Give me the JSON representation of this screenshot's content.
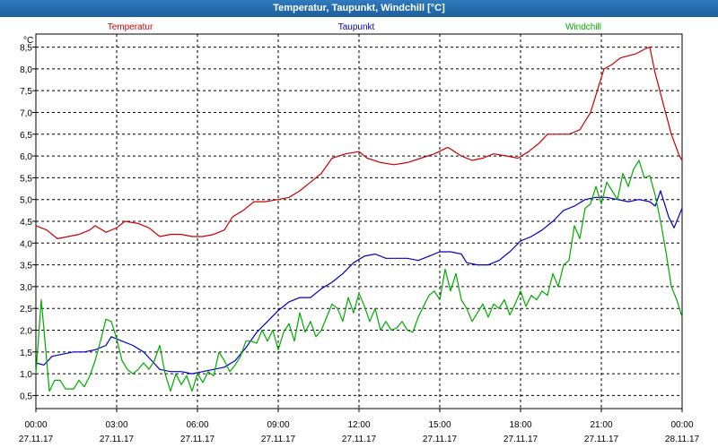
{
  "window": {
    "title": "Temperatur, Taupunkt, Windchill [°C]"
  },
  "chart_data": {
    "type": "line",
    "title": "Temperatur, Taupunkt, Windchill [°C]",
    "ylabel": "°C",
    "ylim": [
      0.2,
      8.8
    ],
    "yticks": [
      "8,5",
      "8,0",
      "7,5",
      "7,0",
      "6,5",
      "6,0",
      "5,5",
      "5,0",
      "4,5",
      "4,0",
      "3,5",
      "3,0",
      "2,5",
      "2,0",
      "1,5",
      "1,0",
      "0,5"
    ],
    "ytick_values": [
      8.5,
      8.0,
      7.5,
      7.0,
      6.5,
      6.0,
      5.5,
      5.0,
      4.5,
      4.0,
      3.5,
      3.0,
      2.5,
      2.0,
      1.5,
      1.0,
      0.5
    ],
    "xlim": [
      0,
      24
    ],
    "xticks": [
      {
        "x": 0,
        "time": "00:00",
        "date": "27.11.17"
      },
      {
        "x": 3,
        "time": "03:00",
        "date": "27.11.17"
      },
      {
        "x": 6,
        "time": "06:00",
        "date": "27.11.17"
      },
      {
        "x": 9,
        "time": "09:00",
        "date": "27.11.17"
      },
      {
        "x": 12,
        "time": "12:00",
        "date": "27.11.17"
      },
      {
        "x": 15,
        "time": "15:00",
        "date": "27.11.17"
      },
      {
        "x": 18,
        "time": "18:00",
        "date": "27.11.17"
      },
      {
        "x": 21,
        "time": "21:00",
        "date": "27.11.17"
      },
      {
        "x": 24,
        "time": "00:00",
        "date": "28.11.17"
      }
    ],
    "grid": true,
    "legend_position": "top",
    "series": [
      {
        "name": "Temperatur",
        "color": "#cc0000",
        "points": [
          [
            0,
            4.4
          ],
          [
            0.4,
            4.3
          ],
          [
            0.8,
            4.1
          ],
          [
            1.2,
            4.15
          ],
          [
            1.6,
            4.2
          ],
          [
            2.0,
            4.3
          ],
          [
            2.2,
            4.4
          ],
          [
            2.6,
            4.25
          ],
          [
            3.0,
            4.35
          ],
          [
            3.3,
            4.5
          ],
          [
            3.8,
            4.45
          ],
          [
            4.2,
            4.35
          ],
          [
            4.6,
            4.15
          ],
          [
            5.0,
            4.2
          ],
          [
            5.4,
            4.2
          ],
          [
            5.8,
            4.15
          ],
          [
            6.2,
            4.15
          ],
          [
            6.6,
            4.2
          ],
          [
            7.0,
            4.3
          ],
          [
            7.3,
            4.6
          ],
          [
            7.7,
            4.75
          ],
          [
            8.1,
            4.95
          ],
          [
            8.5,
            4.95
          ],
          [
            9.0,
            5.0
          ],
          [
            9.4,
            5.05
          ],
          [
            9.8,
            5.2
          ],
          [
            10.2,
            5.4
          ],
          [
            10.6,
            5.6
          ],
          [
            11.0,
            5.95
          ],
          [
            11.5,
            6.05
          ],
          [
            12.0,
            6.1
          ],
          [
            12.3,
            5.95
          ],
          [
            12.8,
            5.85
          ],
          [
            13.3,
            5.8
          ],
          [
            13.8,
            5.85
          ],
          [
            14.3,
            5.95
          ],
          [
            14.8,
            6.05
          ],
          [
            15.3,
            6.2
          ],
          [
            15.8,
            6.0
          ],
          [
            16.2,
            5.9
          ],
          [
            16.6,
            5.95
          ],
          [
            17.0,
            6.05
          ],
          [
            17.5,
            6.0
          ],
          [
            17.9,
            5.95
          ],
          [
            18.3,
            6.1
          ],
          [
            18.7,
            6.3
          ],
          [
            19.0,
            6.5
          ],
          [
            19.4,
            6.5
          ],
          [
            19.8,
            6.5
          ],
          [
            20.2,
            6.6
          ],
          [
            20.6,
            7.0
          ],
          [
            20.9,
            7.6
          ],
          [
            21.1,
            8.0
          ],
          [
            21.4,
            8.1
          ],
          [
            21.7,
            8.25
          ],
          [
            22.0,
            8.3
          ],
          [
            22.3,
            8.35
          ],
          [
            22.6,
            8.45
          ],
          [
            22.8,
            8.5
          ],
          [
            23.0,
            7.9
          ],
          [
            23.3,
            7.2
          ],
          [
            23.6,
            6.5
          ],
          [
            23.9,
            6.0
          ],
          [
            24.0,
            5.9
          ]
        ]
      },
      {
        "name": "Taupunkt",
        "color": "#0000cc",
        "points": [
          [
            0,
            1.25
          ],
          [
            0.3,
            1.2
          ],
          [
            0.6,
            1.4
          ],
          [
            1.0,
            1.45
          ],
          [
            1.4,
            1.5
          ],
          [
            1.8,
            1.5
          ],
          [
            2.2,
            1.55
          ],
          [
            2.6,
            1.65
          ],
          [
            2.8,
            1.85
          ],
          [
            3.2,
            1.75
          ],
          [
            3.6,
            1.65
          ],
          [
            4.0,
            1.5
          ],
          [
            4.3,
            1.3
          ],
          [
            4.6,
            1.1
          ],
          [
            5.0,
            1.05
          ],
          [
            5.4,
            1.05
          ],
          [
            5.8,
            1.0
          ],
          [
            6.2,
            1.05
          ],
          [
            6.6,
            1.1
          ],
          [
            7.0,
            1.15
          ],
          [
            7.4,
            1.3
          ],
          [
            7.8,
            1.6
          ],
          [
            8.2,
            1.95
          ],
          [
            8.6,
            2.2
          ],
          [
            9.0,
            2.45
          ],
          [
            9.4,
            2.65
          ],
          [
            9.8,
            2.75
          ],
          [
            10.2,
            2.75
          ],
          [
            10.6,
            2.95
          ],
          [
            11.0,
            3.1
          ],
          [
            11.4,
            3.3
          ],
          [
            11.8,
            3.55
          ],
          [
            12.2,
            3.7
          ],
          [
            12.6,
            3.75
          ],
          [
            13.0,
            3.65
          ],
          [
            13.4,
            3.65
          ],
          [
            13.8,
            3.65
          ],
          [
            14.2,
            3.6
          ],
          [
            14.6,
            3.7
          ],
          [
            15.0,
            3.8
          ],
          [
            15.4,
            3.8
          ],
          [
            15.8,
            3.75
          ],
          [
            16.0,
            3.55
          ],
          [
            16.4,
            3.5
          ],
          [
            16.8,
            3.5
          ],
          [
            17.2,
            3.6
          ],
          [
            17.6,
            3.8
          ],
          [
            18.0,
            4.05
          ],
          [
            18.4,
            4.15
          ],
          [
            18.8,
            4.3
          ],
          [
            19.2,
            4.5
          ],
          [
            19.6,
            4.75
          ],
          [
            20.0,
            4.85
          ],
          [
            20.4,
            5.0
          ],
          [
            20.8,
            5.05
          ],
          [
            21.2,
            5.05
          ],
          [
            21.6,
            5.0
          ],
          [
            22.0,
            4.95
          ],
          [
            22.4,
            5.0
          ],
          [
            22.8,
            4.95
          ],
          [
            23.0,
            4.85
          ],
          [
            23.2,
            5.2
          ],
          [
            23.5,
            4.6
          ],
          [
            23.7,
            4.35
          ],
          [
            24.0,
            4.8
          ]
        ]
      },
      {
        "name": "Windchill",
        "color": "#00aa00",
        "points": [
          [
            0,
            1.0
          ],
          [
            0.2,
            2.7
          ],
          [
            0.4,
            1.3
          ],
          [
            0.5,
            0.6
          ],
          [
            0.7,
            0.85
          ],
          [
            0.9,
            0.85
          ],
          [
            1.1,
            0.65
          ],
          [
            1.4,
            0.65
          ],
          [
            1.6,
            0.85
          ],
          [
            1.8,
            0.7
          ],
          [
            2.0,
            0.95
          ],
          [
            2.2,
            1.3
          ],
          [
            2.4,
            1.75
          ],
          [
            2.6,
            2.25
          ],
          [
            2.8,
            2.2
          ],
          [
            3.0,
            1.8
          ],
          [
            3.2,
            1.3
          ],
          [
            3.4,
            1.1
          ],
          [
            3.6,
            1.0
          ],
          [
            3.8,
            1.1
          ],
          [
            4.0,
            1.25
          ],
          [
            4.2,
            1.1
          ],
          [
            4.4,
            1.3
          ],
          [
            4.6,
            1.65
          ],
          [
            4.8,
            1.0
          ],
          [
            5.0,
            0.6
          ],
          [
            5.2,
            1.0
          ],
          [
            5.4,
            0.75
          ],
          [
            5.6,
            0.95
          ],
          [
            5.8,
            0.6
          ],
          [
            6.0,
            1.0
          ],
          [
            6.2,
            0.8
          ],
          [
            6.4,
            1.05
          ],
          [
            6.6,
            0.95
          ],
          [
            6.8,
            1.5
          ],
          [
            7.0,
            1.3
          ],
          [
            7.2,
            1.05
          ],
          [
            7.4,
            1.2
          ],
          [
            7.6,
            1.4
          ],
          [
            7.8,
            1.75
          ],
          [
            8.0,
            1.75
          ],
          [
            8.2,
            1.7
          ],
          [
            8.4,
            2.0
          ],
          [
            8.6,
            1.75
          ],
          [
            8.8,
            2.0
          ],
          [
            9.0,
            1.55
          ],
          [
            9.2,
            1.95
          ],
          [
            9.4,
            2.15
          ],
          [
            9.6,
            1.75
          ],
          [
            9.8,
            2.4
          ],
          [
            10.0,
            1.95
          ],
          [
            10.2,
            2.2
          ],
          [
            10.4,
            1.85
          ],
          [
            10.6,
            2.0
          ],
          [
            10.8,
            2.3
          ],
          [
            11.0,
            2.6
          ],
          [
            11.2,
            2.5
          ],
          [
            11.4,
            2.2
          ],
          [
            11.6,
            2.75
          ],
          [
            11.8,
            2.4
          ],
          [
            12.0,
            2.85
          ],
          [
            12.2,
            2.55
          ],
          [
            12.4,
            2.2
          ],
          [
            12.6,
            2.5
          ],
          [
            12.8,
            2.0
          ],
          [
            13.0,
            2.2
          ],
          [
            13.2,
            2.0
          ],
          [
            13.4,
            2.05
          ],
          [
            13.6,
            2.2
          ],
          [
            13.8,
            2.0
          ],
          [
            14.0,
            1.95
          ],
          [
            14.2,
            2.3
          ],
          [
            14.4,
            2.55
          ],
          [
            14.6,
            2.8
          ],
          [
            14.8,
            2.9
          ],
          [
            15.0,
            2.7
          ],
          [
            15.2,
            3.4
          ],
          [
            15.4,
            2.9
          ],
          [
            15.6,
            3.3
          ],
          [
            15.8,
            2.7
          ],
          [
            16.0,
            2.5
          ],
          [
            16.2,
            2.2
          ],
          [
            16.4,
            2.4
          ],
          [
            16.6,
            2.6
          ],
          [
            16.8,
            2.3
          ],
          [
            17.0,
            2.6
          ],
          [
            17.2,
            2.5
          ],
          [
            17.4,
            2.7
          ],
          [
            17.6,
            2.35
          ],
          [
            17.8,
            2.6
          ],
          [
            18.0,
            2.9
          ],
          [
            18.2,
            2.55
          ],
          [
            18.4,
            2.8
          ],
          [
            18.6,
            2.7
          ],
          [
            18.8,
            2.9
          ],
          [
            19.0,
            2.8
          ],
          [
            19.2,
            3.3
          ],
          [
            19.4,
            3.0
          ],
          [
            19.6,
            3.5
          ],
          [
            19.8,
            3.6
          ],
          [
            20.0,
            4.4
          ],
          [
            20.2,
            4.1
          ],
          [
            20.4,
            4.8
          ],
          [
            20.6,
            4.9
          ],
          [
            20.8,
            5.3
          ],
          [
            21.0,
            4.9
          ],
          [
            21.2,
            5.4
          ],
          [
            21.4,
            5.2
          ],
          [
            21.6,
            5.0
          ],
          [
            21.8,
            5.6
          ],
          [
            22.0,
            5.3
          ],
          [
            22.2,
            5.7
          ],
          [
            22.4,
            5.9
          ],
          [
            22.6,
            5.5
          ],
          [
            22.8,
            5.55
          ],
          [
            23.0,
            5.1
          ],
          [
            23.2,
            4.5
          ],
          [
            23.4,
            3.8
          ],
          [
            23.6,
            3.0
          ],
          [
            23.8,
            2.7
          ],
          [
            24.0,
            2.3
          ]
        ]
      }
    ]
  }
}
